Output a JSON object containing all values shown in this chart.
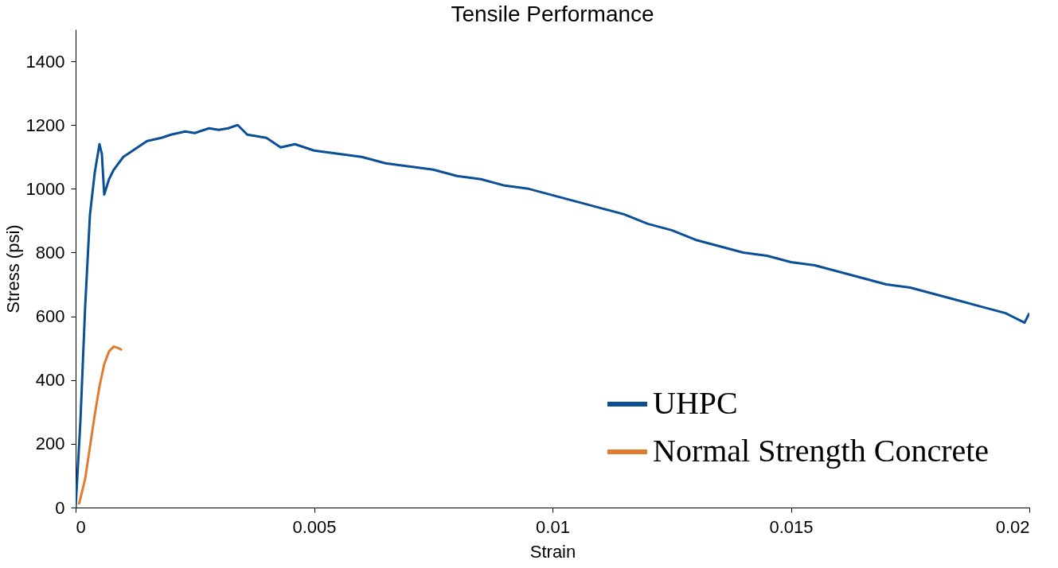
{
  "chart_data": {
    "type": "line",
    "title": "Tensile Performance",
    "xlabel": "Strain",
    "ylabel": "Stress (psi)",
    "xlim": [
      0,
      0.02
    ],
    "xticks": [
      0,
      0.005,
      0.01,
      0.015,
      0.02
    ],
    "ylim": [
      0,
      1500
    ],
    "yticks": [
      0,
      200,
      400,
      600,
      800,
      1000,
      1200,
      1400
    ],
    "grid": false,
    "legend": "bottom right",
    "line_style": "solid",
    "marker": "none",
    "series": [
      {
        "name": "UHPC",
        "color": "#0b4f96",
        "x": [
          0,
          0.0001,
          0.0002,
          0.0003,
          0.0004,
          0.0005,
          0.00055,
          0.0006,
          0.0007,
          0.0008,
          0.001,
          0.0012,
          0.0015,
          0.0018,
          0.002,
          0.0023,
          0.0025,
          0.0028,
          0.003,
          0.0032,
          0.0034,
          0.0036,
          0.004,
          0.0043,
          0.0046,
          0.005,
          0.0055,
          0.006,
          0.0065,
          0.007,
          0.0075,
          0.008,
          0.0085,
          0.009,
          0.0095,
          0.01,
          0.0105,
          0.011,
          0.0115,
          0.012,
          0.0125,
          0.013,
          0.0135,
          0.014,
          0.0145,
          0.015,
          0.0155,
          0.016,
          0.0165,
          0.017,
          0.0175,
          0.018,
          0.0185,
          0.019,
          0.0195,
          0.0199,
          0.02
        ],
        "values": [
          0,
          270,
          630,
          918,
          1050,
          1140,
          1110,
          982,
          1030,
          1060,
          1100,
          1120,
          1150,
          1160,
          1170,
          1180,
          1175,
          1190,
          1185,
          1190,
          1200,
          1170,
          1160,
          1130,
          1140,
          1120,
          1110,
          1100,
          1080,
          1070,
          1060,
          1040,
          1030,
          1010,
          1000,
          980,
          960,
          940,
          920,
          890,
          870,
          840,
          820,
          800,
          790,
          770,
          760,
          740,
          720,
          700,
          690,
          670,
          650,
          630,
          610,
          580,
          610
        ]
      },
      {
        "name": "Normal Strength Concrete",
        "color": "#e07b2f",
        "x": [
          7e-05,
          0.0002,
          0.0003,
          0.0004,
          0.0005,
          0.0006,
          0.0007,
          0.0008,
          0.0009,
          0.00097
        ],
        "values": [
          10,
          90,
          190,
          290,
          380,
          450,
          490,
          505,
          500,
          494
        ]
      }
    ]
  }
}
